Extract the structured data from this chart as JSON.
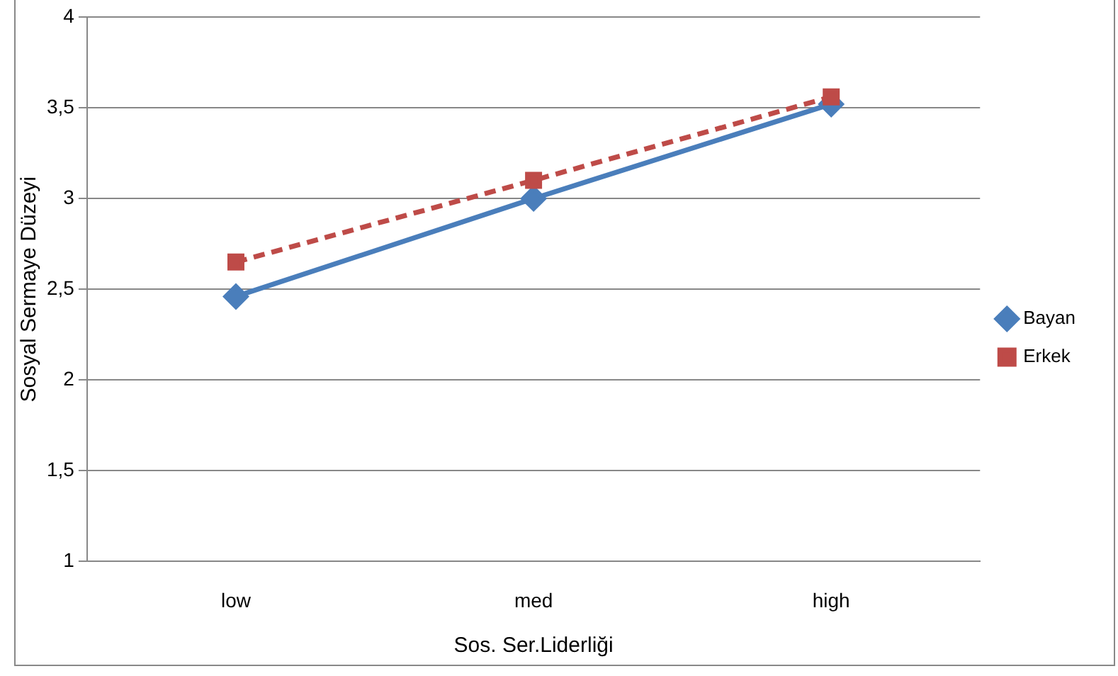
{
  "chart_data": {
    "type": "line",
    "xlabel": "Sos. Ser.Liderliği",
    "ylabel": "Sosyal Sermaye Düzeyi",
    "categories": [
      "low",
      "med",
      "high"
    ],
    "series": [
      {
        "name": "Bayan",
        "color": "#4a7ebb",
        "values": [
          2.46,
          3.0,
          3.52
        ],
        "marker": "diamond",
        "line_style": "solid"
      },
      {
        "name": "Erkek",
        "color": "#be4b48",
        "values": [
          2.65,
          3.1,
          3.56
        ],
        "marker": "square",
        "line_style": "dashed"
      }
    ],
    "ylim": [
      1,
      4
    ],
    "yticks": [
      1,
      {
        "value": 1.5,
        "label": "1,5"
      },
      2,
      {
        "value": 2.5,
        "label": "2,5"
      },
      3,
      {
        "value": 3.5,
        "label": "3,5"
      },
      4
    ],
    "grid": "y",
    "legend": "right"
  }
}
